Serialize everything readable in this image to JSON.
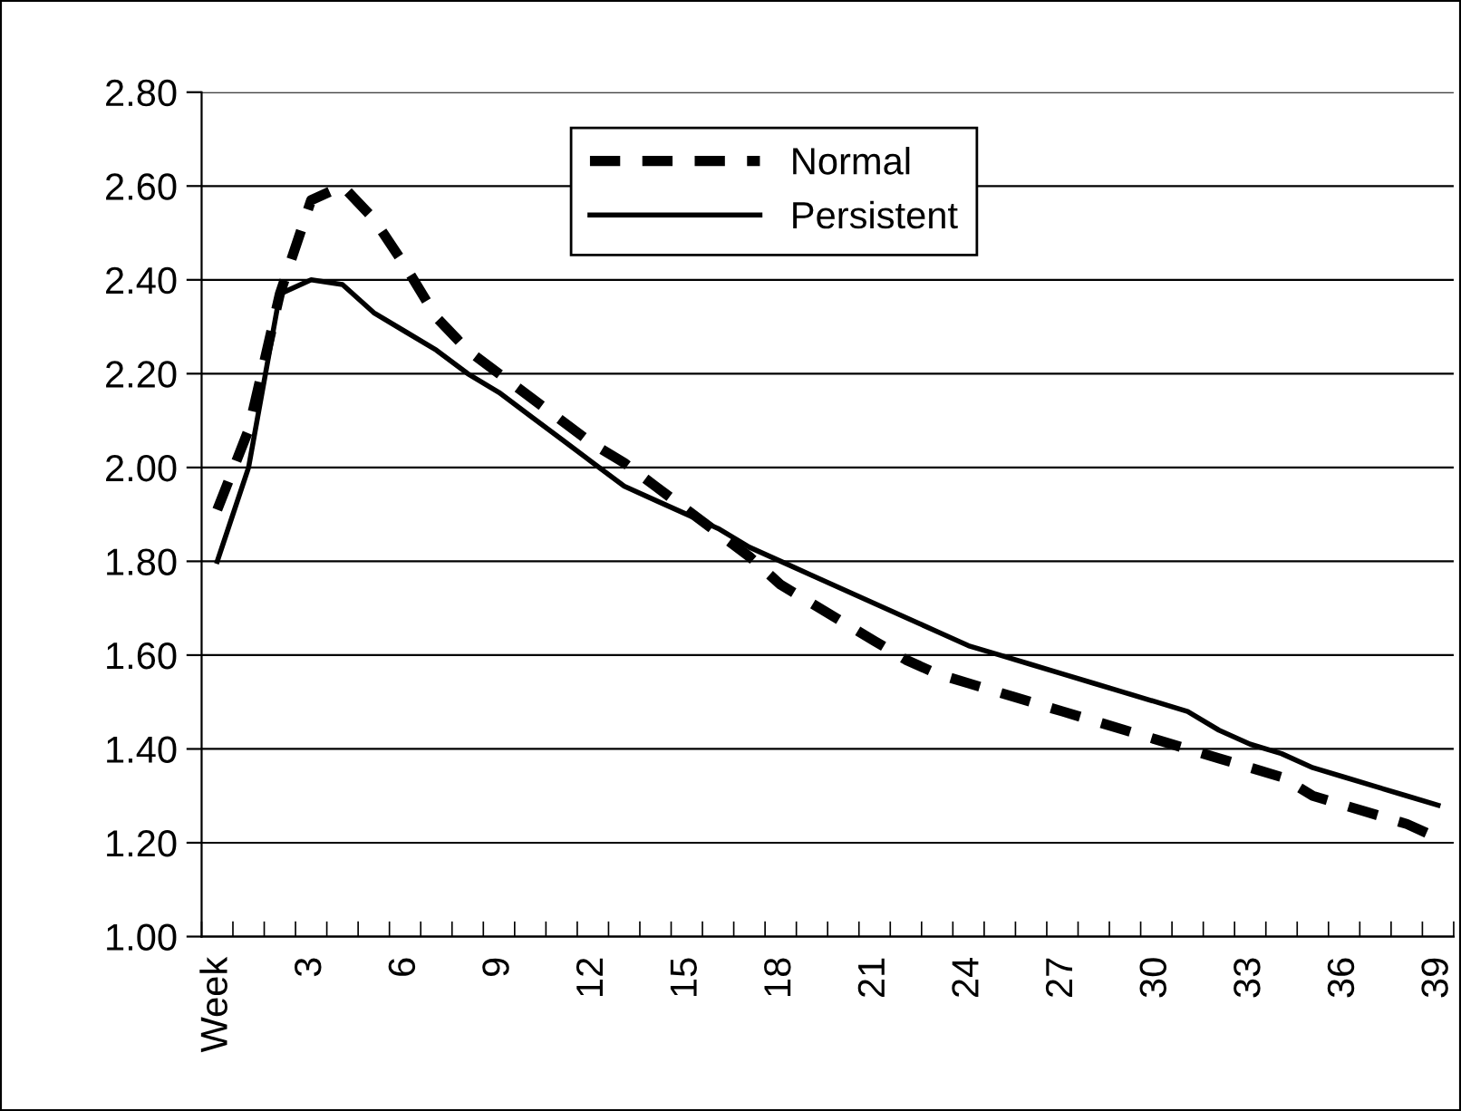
{
  "chart_data": {
    "type": "line",
    "categories": [
      "Week",
      null,
      null,
      "3",
      null,
      null,
      "6",
      null,
      null,
      "9",
      null,
      null,
      "12",
      null,
      null,
      "15",
      null,
      null,
      "18",
      null,
      null,
      "21",
      null,
      null,
      "24",
      null,
      null,
      "27",
      null,
      null,
      "30",
      null,
      null,
      "33",
      null,
      null,
      "36",
      null,
      null,
      "39"
    ],
    "series": [
      {
        "name": "Normal",
        "color": "#000000",
        "line_style": "dashed",
        "values": [
          1.91,
          2.08,
          2.37,
          2.57,
          2.6,
          2.53,
          2.43,
          2.32,
          2.25,
          2.2,
          2.15,
          2.1,
          2.05,
          2.01,
          1.96,
          1.91,
          1.86,
          1.81,
          1.75,
          1.71,
          1.67,
          1.63,
          1.59,
          1.56,
          1.54,
          1.52,
          1.5,
          1.48,
          1.46,
          1.44,
          1.42,
          1.4,
          1.38,
          1.36,
          1.34,
          1.3,
          1.28,
          1.26,
          1.24,
          1.21
        ]
      },
      {
        "name": "Persistent",
        "color": "#000000",
        "line_style": "solid",
        "values": [
          1.8,
          2.0,
          2.37,
          2.4,
          2.39,
          2.33,
          2.29,
          2.25,
          2.2,
          2.16,
          2.11,
          2.06,
          2.01,
          1.96,
          1.93,
          1.9,
          1.87,
          1.83,
          1.8,
          1.77,
          1.74,
          1.71,
          1.68,
          1.65,
          1.62,
          1.6,
          1.58,
          1.56,
          1.54,
          1.52,
          1.5,
          1.48,
          1.44,
          1.41,
          1.39,
          1.36,
          1.34,
          1.32,
          1.3,
          1.28
        ]
      }
    ],
    "ylim": [
      1.0,
      2.8
    ],
    "yticks": [
      {
        "value": 1.0,
        "label": "1.00"
      },
      {
        "value": 1.2,
        "label": "1.20"
      },
      {
        "value": 1.4,
        "label": "1.40"
      },
      {
        "value": 1.6,
        "label": "1.60"
      },
      {
        "value": 1.8,
        "label": "1.80"
      },
      {
        "value": 2.0,
        "label": "2.00"
      },
      {
        "value": 2.2,
        "label": "2.20"
      },
      {
        "value": 2.4,
        "label": "2.40"
      },
      {
        "value": 2.6,
        "label": "2.60"
      },
      {
        "value": 2.8,
        "label": "2.80"
      }
    ],
    "grid": "y",
    "legend": "top",
    "marker": "none"
  }
}
